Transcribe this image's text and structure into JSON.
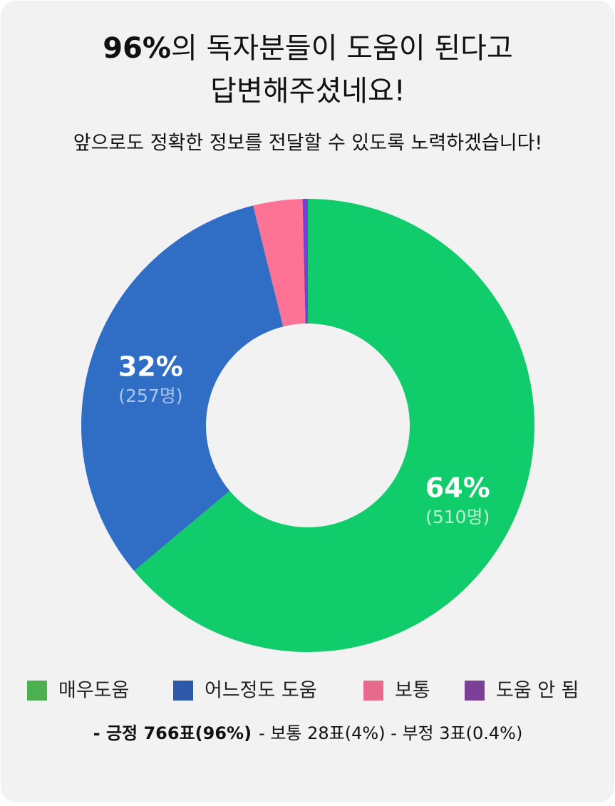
{
  "chart_data": {
    "type": "donut",
    "title": {
      "bold": "96%",
      "lines": [
        "의 독자분들이 도움이 된다고",
        "답변해주셨네요!"
      ]
    },
    "subtitle": "앞으로도 정확한 정보를 전달할 수 있도록 노력하겠습니다!",
    "categories": [
      "매우도움",
      "어느정도 도움",
      "보통",
      "도움 안 됨"
    ],
    "values": [
      510,
      257,
      28,
      3
    ],
    "value_labels": [
      "(510명)",
      "(257명)",
      null,
      null
    ],
    "percent_values": [
      64,
      32,
      null,
      null
    ],
    "percent_labels": [
      "64%",
      "32%",
      null,
      null
    ],
    "colors": [
      "#10cc6a",
      "#306ec6",
      "#fd7395",
      "#7b3fd3"
    ],
    "legend_colors": [
      "#4caf50",
      "#2d5aa8",
      "#e7698c",
      "#7b3f98"
    ],
    "footer": {
      "bold": "- 긍정 766표(96%)",
      "rest": "- 보통 28표(4%) - 부정 3표(0.4%)"
    }
  }
}
